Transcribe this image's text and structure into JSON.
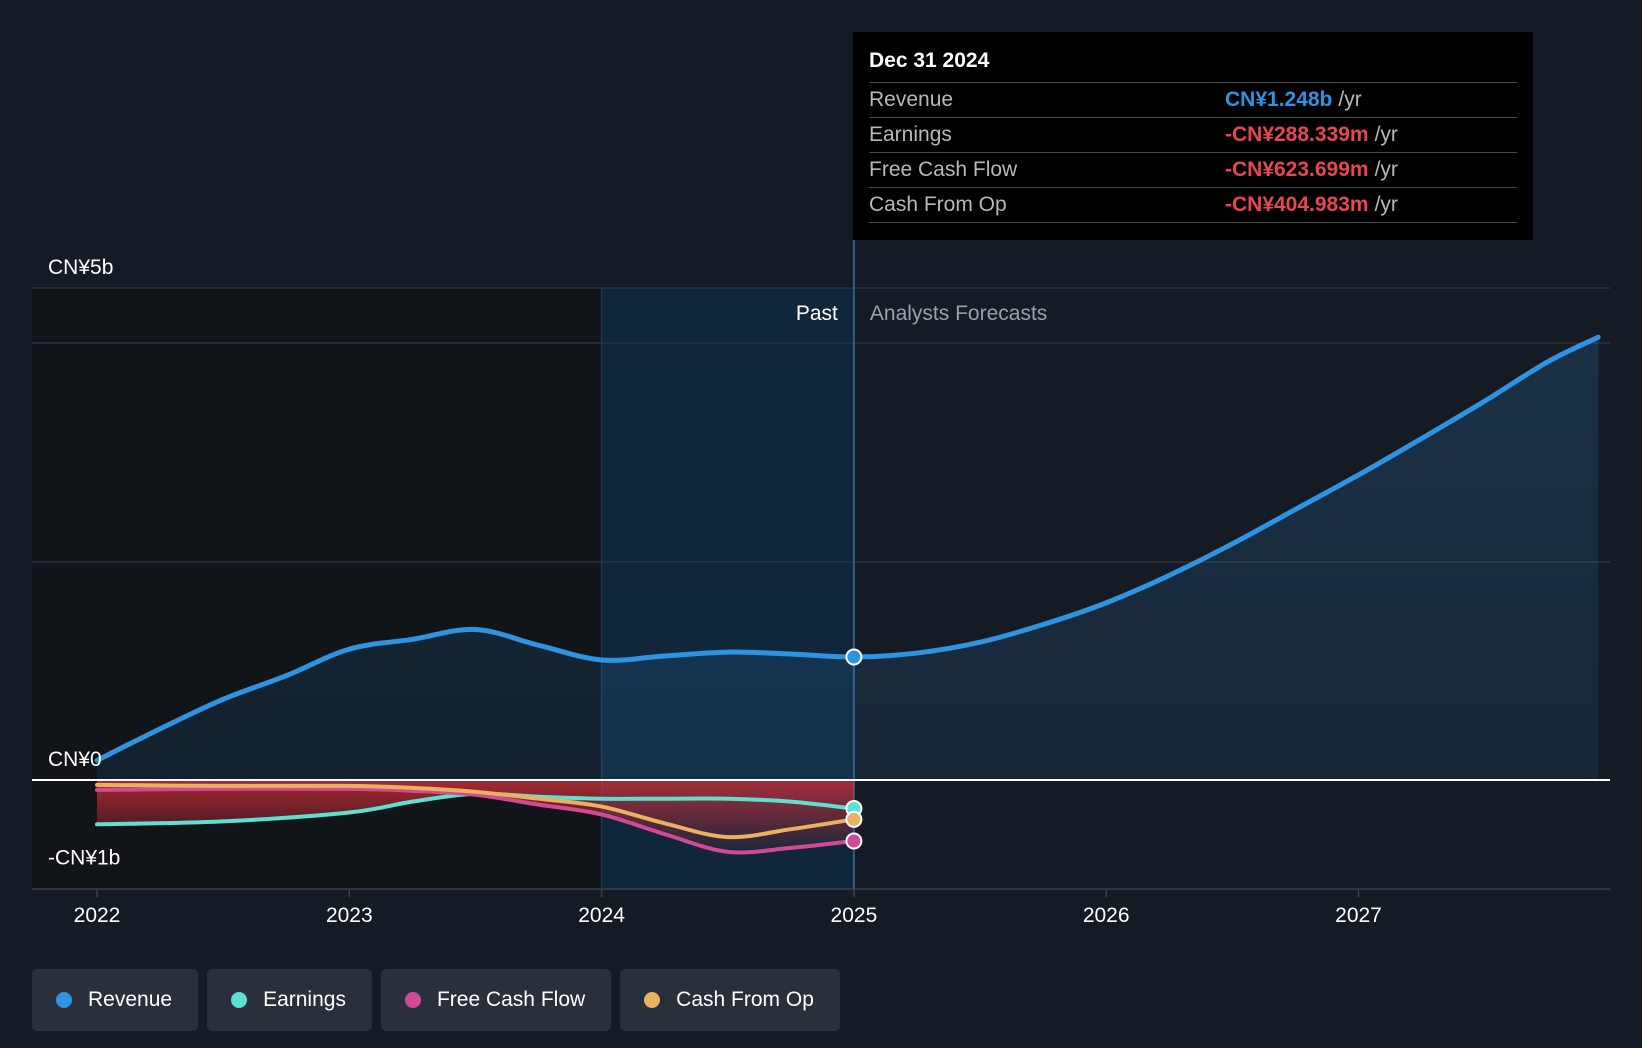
{
  "tooltip": {
    "date": "Dec 31 2024",
    "rows": [
      {
        "label": "Revenue",
        "value": "CN¥1.248b",
        "unit": "/yr",
        "color": "#2e93e0"
      },
      {
        "label": "Earnings",
        "value": "-CN¥288.339m",
        "unit": "/yr",
        "color": "#e8474f"
      },
      {
        "label": "Free Cash Flow",
        "value": "-CN¥623.699m",
        "unit": "/yr",
        "color": "#e8474f"
      },
      {
        "label": "Cash From Op",
        "value": "-CN¥404.983m",
        "unit": "/yr",
        "color": "#e8474f"
      }
    ]
  },
  "legend": [
    {
      "label": "Revenue",
      "color": "#2e93e0"
    },
    {
      "label": "Earnings",
      "color": "#5de0cf"
    },
    {
      "label": "Free Cash Flow",
      "color": "#d04b94"
    },
    {
      "label": "Cash From Op",
      "color": "#e9b260"
    }
  ],
  "chart_data": {
    "type": "line",
    "title": "",
    "y_unit": "CN¥ billions",
    "ylim": [
      -1,
      5
    ],
    "xlim": [
      2021.75,
      2027.95
    ],
    "y_tick_labels": [
      {
        "value": 5,
        "label": "CN¥5b"
      },
      {
        "value": 0,
        "label": "CN¥0"
      },
      {
        "value": -1,
        "label": "-CN¥1b"
      }
    ],
    "x_ticks": [
      2022,
      2023,
      2024,
      2025,
      2026,
      2027
    ],
    "x_tick_labels": [
      "2022",
      "2023",
      "2024",
      "2025",
      "2026",
      "2027"
    ],
    "past_label": "Past",
    "forecast_label": "Analysts Forecasts",
    "past_end": 2025,
    "highlight_start": 2024,
    "series": [
      {
        "name": "Revenue",
        "color": "#2e93e0",
        "x": [
          2022,
          2022.25,
          2022.5,
          2022.75,
          2023,
          2023.25,
          2023.5,
          2023.75,
          2024,
          2024.25,
          2024.5,
          2024.75,
          2025,
          2025.25,
          2025.5,
          2025.75,
          2026,
          2026.25,
          2026.5,
          2026.75,
          2027,
          2027.25,
          2027.5,
          2027.75,
          2027.95
        ],
        "values": [
          0.2,
          0.52,
          0.82,
          1.06,
          1.33,
          1.43,
          1.53,
          1.37,
          1.22,
          1.26,
          1.3,
          1.28,
          1.25,
          1.29,
          1.4,
          1.58,
          1.8,
          2.08,
          2.4,
          2.75,
          3.1,
          3.47,
          3.85,
          4.25,
          4.5
        ]
      },
      {
        "name": "Earnings",
        "color": "#5de0cf",
        "x": [
          2022,
          2022.5,
          2023,
          2023.25,
          2023.5,
          2023.75,
          2024,
          2024.25,
          2024.5,
          2024.75,
          2025
        ],
        "values": [
          -0.45,
          -0.42,
          -0.33,
          -0.22,
          -0.14,
          -0.17,
          -0.19,
          -0.19,
          -0.19,
          -0.22,
          -0.29
        ]
      },
      {
        "name": "Free Cash Flow",
        "color": "#d04b94",
        "x": [
          2022,
          2022.5,
          2023,
          2023.25,
          2023.5,
          2023.75,
          2024,
          2024.25,
          2024.5,
          2024.75,
          2025
        ],
        "values": [
          -0.1,
          -0.09,
          -0.09,
          -0.11,
          -0.15,
          -0.25,
          -0.35,
          -0.55,
          -0.73,
          -0.69,
          -0.62
        ]
      },
      {
        "name": "Cash From Op",
        "color": "#e9b260",
        "x": [
          2022,
          2022.5,
          2023,
          2023.25,
          2023.5,
          2023.75,
          2024,
          2024.25,
          2024.5,
          2024.75,
          2025
        ],
        "values": [
          -0.05,
          -0.06,
          -0.06,
          -0.08,
          -0.12,
          -0.19,
          -0.27,
          -0.44,
          -0.58,
          -0.5,
          -0.4
        ]
      }
    ]
  }
}
